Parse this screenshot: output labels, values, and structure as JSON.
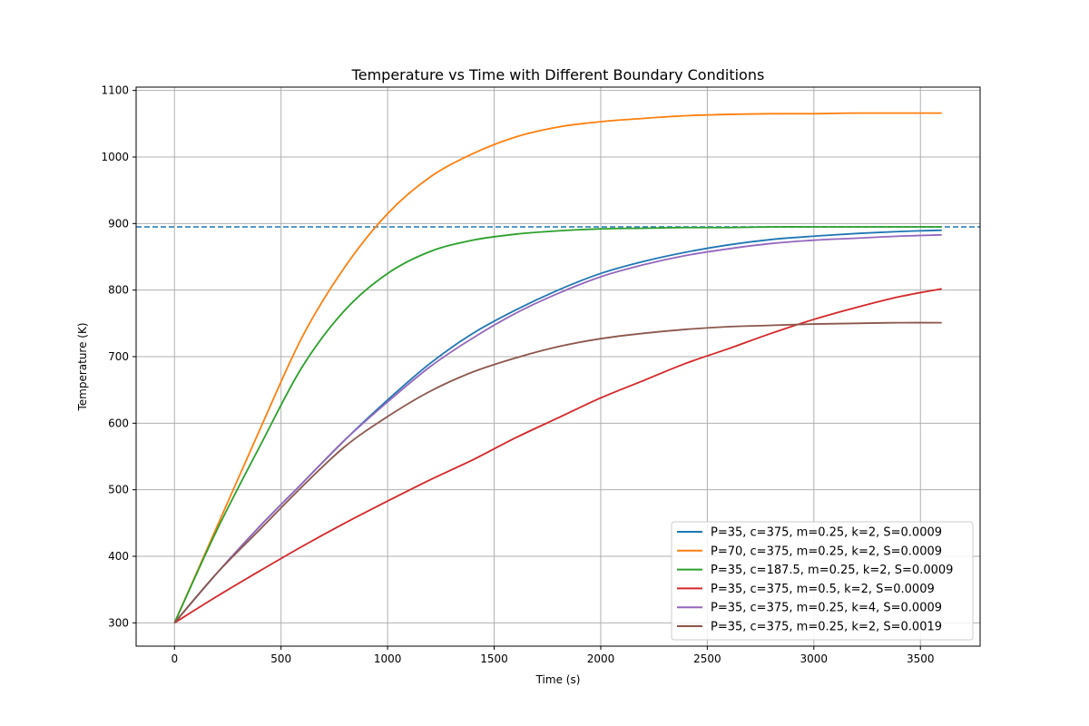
{
  "chart_data": {
    "type": "line",
    "title": "Temperature vs Time with Different Boundary Conditions",
    "xlabel": "Time (s)",
    "ylabel": "Temperature (K)",
    "xlim": [
      -180,
      3780
    ],
    "ylim": [
      265,
      1105
    ],
    "xticks": [
      0,
      500,
      1000,
      1500,
      2000,
      2500,
      3000,
      3500
    ],
    "yticks": [
      300,
      400,
      500,
      600,
      700,
      800,
      900,
      1000,
      1100
    ],
    "grid": true,
    "legend_position": "lower-right",
    "reference_line": {
      "y": 895,
      "style": "dashed",
      "color": "#1f77b4"
    },
    "series": [
      {
        "name": "P=35, c=375, m=0.25, k=2, S=0.0009",
        "color": "#1f77b4",
        "x": [
          0,
          200,
          400,
          600,
          800,
          1000,
          1200,
          1400,
          1600,
          1800,
          2000,
          2200,
          2400,
          2600,
          2800,
          3000,
          3200,
          3400,
          3600
        ],
        "y": [
          300,
          375,
          445,
          510,
          575,
          635,
          690,
          735,
          770,
          800,
          825,
          843,
          857,
          868,
          876,
          881,
          885,
          888,
          890
        ]
      },
      {
        "name": "P=70, c=375, m=0.25, k=2, S=0.0009",
        "color": "#ff7f0e",
        "x": [
          0,
          200,
          400,
          600,
          800,
          1000,
          1200,
          1400,
          1600,
          1800,
          2000,
          2200,
          2400,
          2600,
          2800,
          3000,
          3200,
          3400,
          3600
        ],
        "y": [
          300,
          445,
          590,
          730,
          835,
          915,
          970,
          1005,
          1030,
          1045,
          1053,
          1058,
          1062,
          1064,
          1065,
          1065,
          1066,
          1066,
          1066
        ]
      },
      {
        "name": "P=35, c=187.5, m=0.25, k=2, S=0.0009",
        "color": "#2ca02c",
        "x": [
          0,
          200,
          400,
          600,
          800,
          1000,
          1200,
          1400,
          1600,
          1800,
          2000,
          2200,
          2400,
          2600,
          2800,
          3000,
          3200,
          3400,
          3600
        ],
        "y": [
          300,
          440,
          565,
          685,
          770,
          825,
          858,
          875,
          884,
          889,
          892,
          893,
          894,
          894,
          895,
          895,
          895,
          895,
          895
        ]
      },
      {
        "name": "P=35, c=375, m=0.5, k=2, S=0.0009",
        "color": "#d62728",
        "x": [
          0,
          200,
          400,
          600,
          800,
          1000,
          1200,
          1400,
          1600,
          1800,
          2000,
          2200,
          2400,
          2600,
          2800,
          3000,
          3200,
          3400,
          3600
        ],
        "y": [
          300,
          340,
          378,
          415,
          450,
          483,
          515,
          545,
          578,
          608,
          638,
          664,
          690,
          712,
          735,
          756,
          774,
          790,
          802
        ]
      },
      {
        "name": "P=35, c=375, m=0.25, k=4, S=0.0009",
        "color": "#9467bd",
        "x": [
          0,
          200,
          400,
          600,
          800,
          1000,
          1200,
          1400,
          1600,
          1800,
          2000,
          2200,
          2400,
          2600,
          2800,
          3000,
          3200,
          3400,
          3600
        ],
        "y": [
          300,
          375,
          445,
          510,
          575,
          632,
          685,
          728,
          765,
          795,
          820,
          838,
          852,
          862,
          870,
          875,
          878,
          881,
          883
        ]
      },
      {
        "name": "P=35, c=375, m=0.25, k=2, S=0.0019",
        "color": "#8c564b",
        "x": [
          0,
          200,
          400,
          600,
          800,
          1000,
          1200,
          1400,
          1600,
          1800,
          2000,
          2200,
          2400,
          2600,
          2800,
          3000,
          3200,
          3400,
          3600
        ],
        "y": [
          300,
          375,
          440,
          505,
          565,
          610,
          648,
          677,
          698,
          715,
          727,
          735,
          741,
          745,
          747,
          749,
          750,
          751,
          751
        ]
      }
    ]
  }
}
